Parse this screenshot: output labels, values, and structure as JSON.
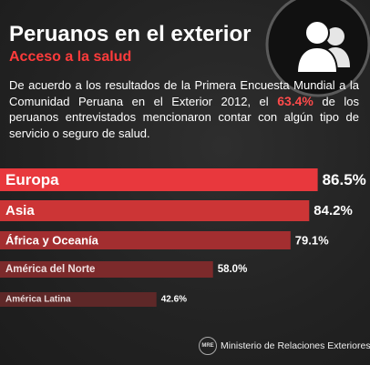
{
  "header": {
    "title": "Peruanos en el exterior",
    "subtitle": "Acceso a la salud",
    "icon": "users-icon"
  },
  "intro": {
    "before": "De acuerdo a los resultados de la Primera Encuesta Mundial a la Comunidad Peruana en el Exterior 2012, el",
    "highlight": "63.4%",
    "after": "de los peruanos entrevistados mencionaron contar con algún tipo de servicio o seguro de salud."
  },
  "chart_data": {
    "type": "bar",
    "orientation": "horizontal",
    "title": "",
    "xlabel": "",
    "ylabel": "",
    "categories": [
      "Europa",
      "Asia",
      "África y Oceanía",
      "América del Norte",
      "América Latina"
    ],
    "values": [
      86.5,
      84.2,
      79.1,
      58.0,
      42.6
    ],
    "value_labels": [
      "86.5%",
      "84.2%",
      "79.1%",
      "58.0%",
      "42.6%"
    ],
    "colors": [
      "#e8383d",
      "#cc3536",
      "#a32e30",
      "#7c2a2b",
      "#5e2828"
    ],
    "xlim": [
      0,
      100
    ],
    "grid": false,
    "legend": "none"
  },
  "footer": {
    "seal": "MRE",
    "ministry": "Ministerio de Relaciones Exteriores"
  }
}
